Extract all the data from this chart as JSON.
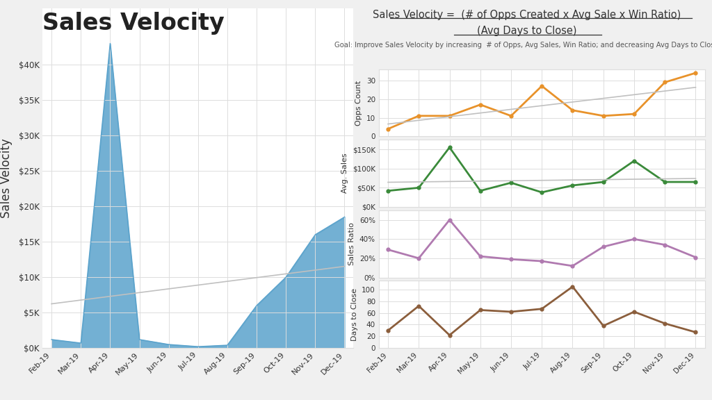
{
  "title_main": "Sales Velocity",
  "title_formula_line1": "Sales Velocity =  ",
  "title_formula_underlined": "(# of Opps Created x Avg Sale x Win Ratio)",
  "title_formula_line2": "(Avg Days to Close)",
  "title_goal": "Goal: Improve Sales Velocity by increasing  # of Opps, Avg Sales, Win Ratio; and decreasing Avg Days to Close",
  "months": [
    "Feb-19",
    "Mar-19",
    "Apr-19",
    "May-19",
    "Jun-19",
    "Jul-19",
    "Aug-19",
    "Sep-19",
    "Oct-19",
    "Nov-19",
    "Dec-19"
  ],
  "sales_velocity": [
    1200,
    700,
    43000,
    1200,
    500,
    200,
    400,
    6000,
    10000,
    16000,
    18500
  ],
  "opps_count": [
    4,
    11,
    11,
    17,
    11,
    27,
    14,
    11,
    12,
    29,
    34
  ],
  "avg_sales": [
    42000,
    50000,
    155000,
    42000,
    63000,
    38000,
    56000,
    65000,
    120000,
    65000,
    65000
  ],
  "sales_ratio": [
    0.29,
    0.2,
    0.6,
    0.22,
    0.19,
    0.17,
    0.12,
    0.32,
    0.4,
    0.34,
    0.21
  ],
  "days_to_close": [
    30,
    72,
    22,
    65,
    62,
    67,
    105,
    38,
    62,
    42,
    27
  ],
  "sv_color": "#5ba3cc",
  "opps_color": "#e8922a",
  "avgsales_color": "#3a8a3a",
  "ratio_color": "#b07ab0",
  "days_color": "#8b5e3c",
  "trend_color": "#c0c0c0",
  "background_color": "#f0f0f0",
  "panel_bg": "#ffffff",
  "grid_color": "#dddddd"
}
